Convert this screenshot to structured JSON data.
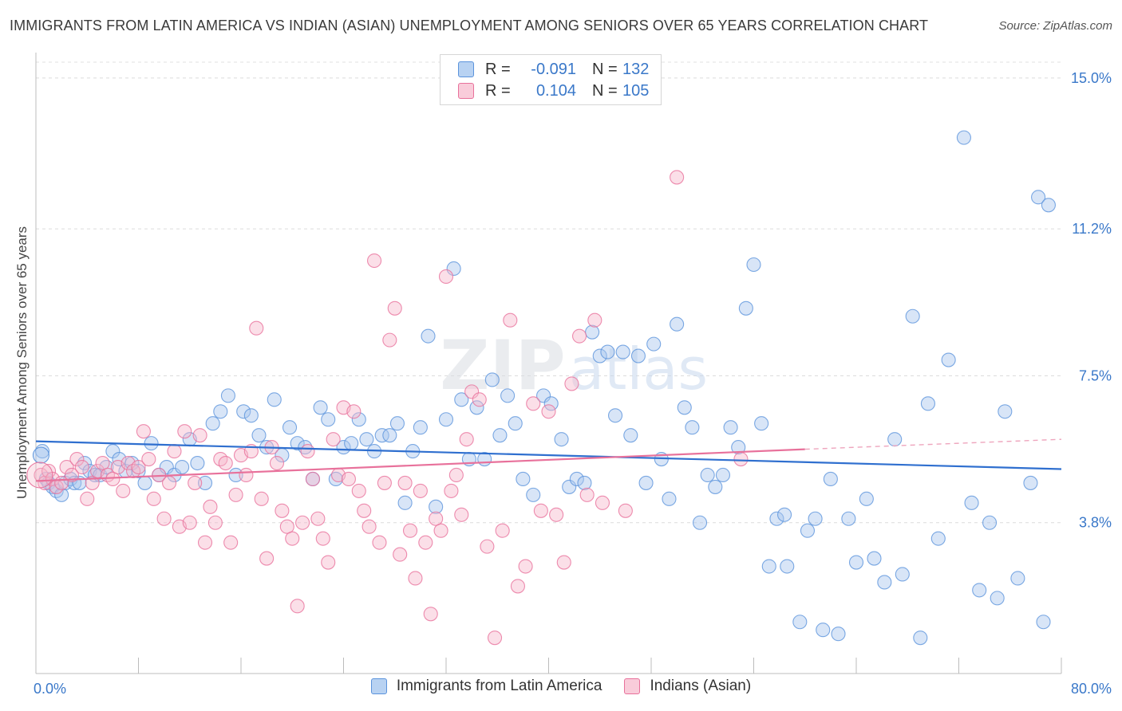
{
  "title": "IMMIGRANTS FROM LATIN AMERICA VS INDIAN (ASIAN) UNEMPLOYMENT AMONG SENIORS OVER 65 YEARS CORRELATION CHART",
  "source": "Source: ZipAtlas.com",
  "watermark": {
    "zip": "ZIP",
    "atlas": "atlas"
  },
  "legend_top": [
    {
      "r_label": "R =",
      "r_value": "-0.091",
      "n_label": "N =",
      "n_value": "132",
      "color": "#a9c6ee"
    },
    {
      "r_label": "R =",
      "r_value": "0.104",
      "n_label": "N =",
      "n_value": "105",
      "color": "#f6b9cc"
    }
  ],
  "chart_data": {
    "type": "scatter",
    "title": "IMMIGRANTS FROM LATIN AMERICA VS INDIAN (ASIAN) UNEMPLOYMENT AMONG SENIORS OVER 65 YEARS CORRELATION CHART",
    "xlabel": "",
    "ylabel": "Unemployment Among Seniors over 65 years",
    "xlim": [
      0,
      80
    ],
    "ylim": [
      0,
      15.4
    ],
    "x_tick_labels": [
      "0.0%",
      "80.0%"
    ],
    "y_ticks": [
      3.8,
      7.5,
      11.2,
      15.0
    ],
    "y_tick_labels": [
      "3.8%",
      "7.5%",
      "11.2%",
      "15.0%"
    ],
    "grid": "horizontal dashed",
    "legend_placement": "bottom",
    "series": [
      {
        "name": "Immigrants from Latin America",
        "color": "#5b93dc",
        "fill": "#a9c6ee",
        "trend": {
          "x": [
            0,
            80
          ],
          "y": [
            5.85,
            5.15
          ]
        },
        "points": [
          [
            0.5,
            5.6
          ],
          [
            0.8,
            4.9
          ],
          [
            1.0,
            4.8
          ],
          [
            1.3,
            4.7
          ],
          [
            1.6,
            4.6
          ],
          [
            2.0,
            4.5
          ],
          [
            2.3,
            4.8
          ],
          [
            2.7,
            4.9
          ],
          [
            3.0,
            4.8
          ],
          [
            3.4,
            4.8
          ],
          [
            3.8,
            5.3
          ],
          [
            4.2,
            5.1
          ],
          [
            4.6,
            5.0
          ],
          [
            5.0,
            5.0
          ],
          [
            5.5,
            5.2
          ],
          [
            6.0,
            5.6
          ],
          [
            6.5,
            5.4
          ],
          [
            7.0,
            5.1
          ],
          [
            7.5,
            5.3
          ],
          [
            8.0,
            5.1
          ],
          [
            8.5,
            4.8
          ],
          [
            9.0,
            5.8
          ],
          [
            9.6,
            5.0
          ],
          [
            10.2,
            5.2
          ],
          [
            10.8,
            5.0
          ],
          [
            11.4,
            5.2
          ],
          [
            12.0,
            5.9
          ],
          [
            12.6,
            5.3
          ],
          [
            13.2,
            4.8
          ],
          [
            13.8,
            6.3
          ],
          [
            14.4,
            6.6
          ],
          [
            15.0,
            7.0
          ],
          [
            15.6,
            5.0
          ],
          [
            16.2,
            6.6
          ],
          [
            16.8,
            6.5
          ],
          [
            17.4,
            6.0
          ],
          [
            18.0,
            5.7
          ],
          [
            18.6,
            6.9
          ],
          [
            19.2,
            5.5
          ],
          [
            19.8,
            6.2
          ],
          [
            20.4,
            5.8
          ],
          [
            21.0,
            5.7
          ],
          [
            21.6,
            4.9
          ],
          [
            22.2,
            6.7
          ],
          [
            22.8,
            6.4
          ],
          [
            23.4,
            4.9
          ],
          [
            24.0,
            5.7
          ],
          [
            24.6,
            5.8
          ],
          [
            25.2,
            6.4
          ],
          [
            25.8,
            5.9
          ],
          [
            26.4,
            5.6
          ],
          [
            27.0,
            6.0
          ],
          [
            27.6,
            6.0
          ],
          [
            28.2,
            6.3
          ],
          [
            28.8,
            4.3
          ],
          [
            29.4,
            5.6
          ],
          [
            30.0,
            6.2
          ],
          [
            30.6,
            8.5
          ],
          [
            31.2,
            4.2
          ],
          [
            32.0,
            6.4
          ],
          [
            32.6,
            10.2
          ],
          [
            33.2,
            6.9
          ],
          [
            33.8,
            5.4
          ],
          [
            34.4,
            6.7
          ],
          [
            35.0,
            5.4
          ],
          [
            35.6,
            7.4
          ],
          [
            36.2,
            6.0
          ],
          [
            36.8,
            7.0
          ],
          [
            37.4,
            6.3
          ],
          [
            38.0,
            4.9
          ],
          [
            38.8,
            4.5
          ],
          [
            39.6,
            7.0
          ],
          [
            40.2,
            6.8
          ],
          [
            41.0,
            5.9
          ],
          [
            41.6,
            4.7
          ],
          [
            42.2,
            4.9
          ],
          [
            42.8,
            4.8
          ],
          [
            43.4,
            8.6
          ],
          [
            44.0,
            8.0
          ],
          [
            44.6,
            8.1
          ],
          [
            45.2,
            6.5
          ],
          [
            45.8,
            8.1
          ],
          [
            46.4,
            6.0
          ],
          [
            47.0,
            8.0
          ],
          [
            47.6,
            4.8
          ],
          [
            48.2,
            8.3
          ],
          [
            48.8,
            5.4
          ],
          [
            49.4,
            4.4
          ],
          [
            50.0,
            8.8
          ],
          [
            50.6,
            6.7
          ],
          [
            51.2,
            6.2
          ],
          [
            51.8,
            3.8
          ],
          [
            52.4,
            5.0
          ],
          [
            53.0,
            4.7
          ],
          [
            53.6,
            5.0
          ],
          [
            54.2,
            6.2
          ],
          [
            54.8,
            5.7
          ],
          [
            55.4,
            9.2
          ],
          [
            56.0,
            10.3
          ],
          [
            56.6,
            6.3
          ],
          [
            57.2,
            2.7
          ],
          [
            57.8,
            3.9
          ],
          [
            58.4,
            4.0
          ],
          [
            58.6,
            2.7
          ],
          [
            59.6,
            1.3
          ],
          [
            60.2,
            3.6
          ],
          [
            60.8,
            3.9
          ],
          [
            61.4,
            1.1
          ],
          [
            62.0,
            4.9
          ],
          [
            62.6,
            1.0
          ],
          [
            63.4,
            3.9
          ],
          [
            64.0,
            2.8
          ],
          [
            64.8,
            4.4
          ],
          [
            65.4,
            2.9
          ],
          [
            66.2,
            2.3
          ],
          [
            67.0,
            5.9
          ],
          [
            67.6,
            2.5
          ],
          [
            68.4,
            9.0
          ],
          [
            69.0,
            0.9
          ],
          [
            69.6,
            6.8
          ],
          [
            70.4,
            3.4
          ],
          [
            71.2,
            7.9
          ],
          [
            72.4,
            13.5
          ],
          [
            73.0,
            4.3
          ],
          [
            73.6,
            2.1
          ],
          [
            74.4,
            3.8
          ],
          [
            75.0,
            1.9
          ],
          [
            75.6,
            6.6
          ],
          [
            76.6,
            2.4
          ],
          [
            77.6,
            4.8
          ],
          [
            78.2,
            12.0
          ],
          [
            78.6,
            1.3
          ],
          [
            79.0,
            11.8
          ]
        ]
      },
      {
        "name": "Indians (Asian)",
        "color": "#e8719b",
        "fill": "#f6b9cc",
        "trend": {
          "x": [
            0,
            60
          ],
          "y": [
            4.85,
            5.65
          ]
        },
        "trend_dashed": {
          "x": [
            60,
            80
          ],
          "y": [
            5.65,
            5.9
          ]
        },
        "points": [
          [
            0.4,
            5.0
          ],
          [
            0.7,
            4.8
          ],
          [
            1.0,
            5.1
          ],
          [
            1.3,
            4.9
          ],
          [
            1.6,
            4.7
          ],
          [
            2.0,
            4.8
          ],
          [
            2.4,
            5.2
          ],
          [
            2.8,
            5.0
          ],
          [
            3.2,
            5.4
          ],
          [
            3.6,
            5.2
          ],
          [
            4.0,
            4.4
          ],
          [
            4.4,
            4.8
          ],
          [
            4.8,
            5.1
          ],
          [
            5.2,
            5.3
          ],
          [
            5.6,
            5.0
          ],
          [
            6.0,
            4.9
          ],
          [
            6.4,
            5.2
          ],
          [
            6.8,
            4.6
          ],
          [
            7.2,
            5.3
          ],
          [
            7.6,
            5.1
          ],
          [
            8.0,
            5.2
          ],
          [
            8.4,
            6.1
          ],
          [
            8.8,
            5.4
          ],
          [
            9.2,
            4.4
          ],
          [
            9.6,
            5.0
          ],
          [
            10.0,
            3.9
          ],
          [
            10.4,
            4.8
          ],
          [
            10.8,
            5.6
          ],
          [
            11.2,
            3.7
          ],
          [
            11.6,
            6.1
          ],
          [
            12.0,
            3.8
          ],
          [
            12.4,
            4.8
          ],
          [
            12.8,
            6.0
          ],
          [
            13.2,
            3.3
          ],
          [
            13.6,
            4.2
          ],
          [
            14.0,
            3.8
          ],
          [
            14.4,
            5.4
          ],
          [
            14.8,
            5.3
          ],
          [
            15.2,
            3.3
          ],
          [
            15.6,
            4.5
          ],
          [
            16.0,
            5.5
          ],
          [
            16.4,
            5.0
          ],
          [
            16.8,
            5.6
          ],
          [
            17.2,
            8.7
          ],
          [
            17.6,
            4.4
          ],
          [
            18.0,
            2.9
          ],
          [
            18.4,
            5.7
          ],
          [
            18.8,
            5.3
          ],
          [
            19.2,
            4.1
          ],
          [
            19.6,
            3.7
          ],
          [
            20.0,
            3.4
          ],
          [
            20.4,
            1.7
          ],
          [
            20.8,
            3.8
          ],
          [
            21.2,
            5.6
          ],
          [
            21.6,
            4.9
          ],
          [
            22.0,
            3.9
          ],
          [
            22.4,
            3.4
          ],
          [
            22.8,
            2.8
          ],
          [
            23.2,
            5.9
          ],
          [
            23.6,
            5.0
          ],
          [
            24.0,
            6.7
          ],
          [
            24.4,
            4.9
          ],
          [
            24.8,
            6.6
          ],
          [
            25.2,
            4.6
          ],
          [
            25.6,
            4.1
          ],
          [
            26.0,
            3.7
          ],
          [
            26.4,
            10.4
          ],
          [
            26.8,
            3.3
          ],
          [
            27.2,
            4.8
          ],
          [
            27.6,
            8.4
          ],
          [
            28.0,
            9.2
          ],
          [
            28.4,
            3.0
          ],
          [
            28.8,
            4.8
          ],
          [
            29.2,
            3.6
          ],
          [
            29.6,
            2.4
          ],
          [
            30.0,
            4.6
          ],
          [
            30.4,
            3.3
          ],
          [
            30.8,
            1.5
          ],
          [
            31.2,
            3.9
          ],
          [
            31.6,
            3.6
          ],
          [
            32.0,
            10.0
          ],
          [
            32.4,
            4.6
          ],
          [
            32.8,
            5.0
          ],
          [
            33.2,
            4.0
          ],
          [
            33.6,
            5.9
          ],
          [
            34.0,
            7.1
          ],
          [
            34.6,
            6.9
          ],
          [
            35.2,
            3.2
          ],
          [
            35.8,
            0.9
          ],
          [
            36.4,
            3.6
          ],
          [
            37.0,
            8.9
          ],
          [
            37.6,
            2.2
          ],
          [
            38.2,
            2.7
          ],
          [
            38.8,
            6.8
          ],
          [
            39.4,
            4.1
          ],
          [
            40.0,
            6.6
          ],
          [
            40.6,
            4.0
          ],
          [
            41.2,
            2.8
          ],
          [
            41.8,
            7.3
          ],
          [
            42.4,
            8.5
          ],
          [
            43.0,
            4.5
          ],
          [
            43.6,
            8.9
          ],
          [
            44.2,
            4.3
          ],
          [
            46.0,
            4.1
          ],
          [
            50.0,
            12.5
          ],
          [
            55.0,
            5.4
          ]
        ]
      }
    ]
  },
  "legend_bottom": [
    {
      "label": "Immigrants from Latin America",
      "color": "#a9c6ee"
    },
    {
      "label": "Indians (Asian)",
      "color": "#f6b9cc"
    }
  ]
}
